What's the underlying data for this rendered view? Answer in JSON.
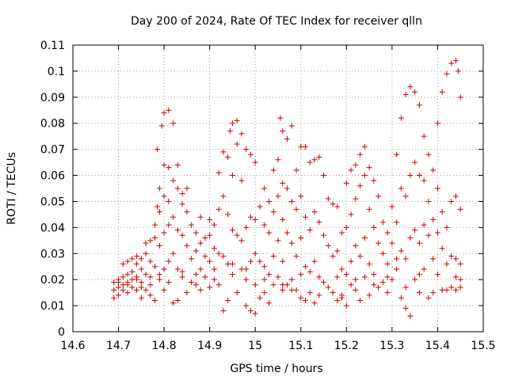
{
  "chart_data": {
    "type": "scatter",
    "title": "Day 200 of 2024, Rate Of TEC Index for receiver qlln",
    "xlabel": "GPS time / hours",
    "ylabel": "ROTI / TECUs",
    "xlim": [
      14.6,
      15.5
    ],
    "ylim": [
      0,
      0.11
    ],
    "xticks": [
      "14.6",
      "14.7",
      "14.8",
      "14.9",
      "15",
      "15.1",
      "15.2",
      "15.3",
      "15.4",
      "15.5"
    ],
    "yticks": [
      "0",
      "0.01",
      "0.02",
      "0.03",
      "0.04",
      "0.05",
      "0.06",
      "0.07",
      "0.08",
      "0.09",
      "0.1",
      "0.11"
    ],
    "grid": true,
    "marker": "+",
    "series_color": "#cc0000",
    "points": [
      [
        14.69,
        0.019
      ],
      [
        14.69,
        0.016
      ],
      [
        14.69,
        0.013
      ],
      [
        14.7,
        0.02
      ],
      [
        14.7,
        0.017
      ],
      [
        14.7,
        0.014
      ],
      [
        14.71,
        0.021
      ],
      [
        14.71,
        0.018
      ],
      [
        14.71,
        0.016
      ],
      [
        14.71,
        0.026
      ],
      [
        14.72,
        0.027
      ],
      [
        14.72,
        0.022
      ],
      [
        14.72,
        0.019
      ],
      [
        14.72,
        0.015
      ],
      [
        14.73,
        0.028
      ],
      [
        14.73,
        0.023
      ],
      [
        14.73,
        0.02
      ],
      [
        14.73,
        0.017
      ],
      [
        14.74,
        0.029
      ],
      [
        14.74,
        0.026
      ],
      [
        14.74,
        0.021
      ],
      [
        14.74,
        0.016
      ],
      [
        14.75,
        0.028
      ],
      [
        14.75,
        0.024
      ],
      [
        14.75,
        0.019
      ],
      [
        14.75,
        0.013
      ],
      [
        14.76,
        0.034
      ],
      [
        14.76,
        0.03
      ],
      [
        14.76,
        0.022
      ],
      [
        14.76,
        0.016
      ],
      [
        14.77,
        0.035
      ],
      [
        14.77,
        0.027
      ],
      [
        14.77,
        0.018
      ],
      [
        14.77,
        0.014
      ],
      [
        14.78,
        0.041
      ],
      [
        14.78,
        0.036
      ],
      [
        14.78,
        0.025
      ],
      [
        14.78,
        0.012
      ],
      [
        14.785,
        0.07
      ],
      [
        14.785,
        0.048
      ],
      [
        14.79,
        0.055
      ],
      [
        14.79,
        0.046
      ],
      [
        14.79,
        0.033
      ],
      [
        14.79,
        0.02
      ],
      [
        14.795,
        0.079
      ],
      [
        14.8,
        0.084
      ],
      [
        14.8,
        0.064
      ],
      [
        14.8,
        0.052
      ],
      [
        14.8,
        0.038
      ],
      [
        14.8,
        0.016
      ],
      [
        14.81,
        0.085
      ],
      [
        14.81,
        0.063
      ],
      [
        14.81,
        0.05
      ],
      [
        14.81,
        0.041
      ],
      [
        14.81,
        0.027
      ],
      [
        14.81,
        0.019
      ],
      [
        14.82,
        0.08
      ],
      [
        14.82,
        0.058
      ],
      [
        14.82,
        0.044
      ],
      [
        14.82,
        0.03
      ],
      [
        14.82,
        0.011
      ],
      [
        14.83,
        0.064
      ],
      [
        14.83,
        0.055
      ],
      [
        14.83,
        0.039
      ],
      [
        14.83,
        0.024
      ],
      [
        14.83,
        0.012
      ],
      [
        14.84,
        0.053
      ],
      [
        14.84,
        0.049
      ],
      [
        14.84,
        0.037
      ],
      [
        14.84,
        0.021
      ],
      [
        14.85,
        0.055
      ],
      [
        14.85,
        0.046
      ],
      [
        14.85,
        0.033
      ],
      [
        14.85,
        0.015
      ],
      [
        14.86,
        0.041
      ],
      [
        14.86,
        0.028
      ],
      [
        14.86,
        0.019
      ],
      [
        14.87,
        0.038
      ],
      [
        14.87,
        0.031
      ],
      [
        14.87,
        0.022
      ],
      [
        14.88,
        0.044
      ],
      [
        14.88,
        0.034
      ],
      [
        14.88,
        0.024
      ],
      [
        14.88,
        0.016
      ],
      [
        14.89,
        0.036
      ],
      [
        14.89,
        0.029
      ],
      [
        14.89,
        0.021
      ],
      [
        14.9,
        0.043
      ],
      [
        14.9,
        0.037
      ],
      [
        14.9,
        0.027
      ],
      [
        14.9,
        0.017
      ],
      [
        14.91,
        0.041
      ],
      [
        14.91,
        0.032
      ],
      [
        14.91,
        0.024
      ],
      [
        14.92,
        0.061
      ],
      [
        14.92,
        0.047
      ],
      [
        14.92,
        0.03
      ],
      [
        14.92,
        0.018
      ],
      [
        14.93,
        0.069
      ],
      [
        14.93,
        0.052
      ],
      [
        14.93,
        0.029
      ],
      [
        14.93,
        0.008
      ],
      [
        14.94,
        0.067
      ],
      [
        14.94,
        0.045
      ],
      [
        14.94,
        0.026
      ],
      [
        14.94,
        0.012
      ],
      [
        14.945,
        0.077
      ],
      [
        14.95,
        0.08
      ],
      [
        14.95,
        0.06
      ],
      [
        14.95,
        0.039
      ],
      [
        14.95,
        0.022
      ],
      [
        14.96,
        0.081
      ],
      [
        14.96,
        0.072
      ],
      [
        14.96,
        0.037
      ],
      [
        14.96,
        0.015
      ],
      [
        14.97,
        0.076
      ],
      [
        14.97,
        0.058
      ],
      [
        14.97,
        0.035
      ],
      [
        14.97,
        0.024
      ],
      [
        14.98,
        0.07
      ],
      [
        14.98,
        0.04
      ],
      [
        14.98,
        0.02
      ],
      [
        14.98,
        0.01
      ],
      [
        14.99,
        0.068
      ],
      [
        14.99,
        0.044
      ],
      [
        14.99,
        0.027
      ],
      [
        14.99,
        0.008
      ],
      [
        15.0,
        0.065
      ],
      [
        15.0,
        0.043
      ],
      [
        15.0,
        0.03
      ],
      [
        15.0,
        0.018
      ],
      [
        15.0,
        0.007
      ],
      [
        15.01,
        0.048
      ],
      [
        15.01,
        0.027
      ],
      [
        15.01,
        0.013
      ],
      [
        15.02,
        0.055
      ],
      [
        15.02,
        0.041
      ],
      [
        15.02,
        0.025
      ],
      [
        15.02,
        0.015
      ],
      [
        15.03,
        0.05
      ],
      [
        15.03,
        0.038
      ],
      [
        15.03,
        0.022
      ],
      [
        15.03,
        0.011
      ],
      [
        15.04,
        0.062
      ],
      [
        15.04,
        0.046
      ],
      [
        15.04,
        0.029
      ],
      [
        15.04,
        0.018
      ],
      [
        15.05,
        0.066
      ],
      [
        15.05,
        0.052
      ],
      [
        15.05,
        0.035
      ],
      [
        15.05,
        0.021
      ],
      [
        15.055,
        0.082
      ],
      [
        15.06,
        0.077
      ],
      [
        15.06,
        0.057
      ],
      [
        15.06,
        0.043
      ],
      [
        15.06,
        0.027
      ],
      [
        15.06,
        0.016
      ],
      [
        15.07,
        0.074
      ],
      [
        15.07,
        0.055
      ],
      [
        15.07,
        0.038
      ],
      [
        15.07,
        0.018
      ],
      [
        15.08,
        0.079
      ],
      [
        15.08,
        0.05
      ],
      [
        15.08,
        0.034
      ],
      [
        15.08,
        0.02
      ],
      [
        15.09,
        0.062
      ],
      [
        15.09,
        0.047
      ],
      [
        15.09,
        0.029
      ],
      [
        15.09,
        0.016
      ],
      [
        15.1,
        0.071
      ],
      [
        15.1,
        0.052
      ],
      [
        15.1,
        0.036
      ],
      [
        15.1,
        0.022
      ],
      [
        15.1,
        0.013
      ],
      [
        15.11,
        0.071
      ],
      [
        15.11,
        0.044
      ],
      [
        15.11,
        0.025
      ],
      [
        15.11,
        0.012
      ],
      [
        15.12,
        0.065
      ],
      [
        15.12,
        0.039
      ],
      [
        15.12,
        0.023
      ],
      [
        15.12,
        0.015
      ],
      [
        15.13,
        0.066
      ],
      [
        15.13,
        0.046
      ],
      [
        15.13,
        0.027
      ],
      [
        15.13,
        0.011
      ],
      [
        15.14,
        0.067
      ],
      [
        15.14,
        0.042
      ],
      [
        15.14,
        0.021
      ],
      [
        15.15,
        0.06
      ],
      [
        15.15,
        0.037
      ],
      [
        15.15,
        0.019
      ],
      [
        15.16,
        0.051
      ],
      [
        15.16,
        0.033
      ],
      [
        15.16,
        0.017
      ],
      [
        15.17,
        0.049
      ],
      [
        15.17,
        0.029
      ],
      [
        15.17,
        0.015
      ],
      [
        15.18,
        0.048
      ],
      [
        15.18,
        0.031
      ],
      [
        15.18,
        0.021
      ],
      [
        15.18,
        0.012
      ],
      [
        15.19,
        0.038
      ],
      [
        15.19,
        0.024
      ],
      [
        15.19,
        0.014
      ],
      [
        15.2,
        0.057
      ],
      [
        15.2,
        0.04
      ],
      [
        15.2,
        0.022
      ],
      [
        15.2,
        0.01
      ],
      [
        15.21,
        0.062
      ],
      [
        15.21,
        0.045
      ],
      [
        15.21,
        0.027
      ],
      [
        15.21,
        0.018
      ],
      [
        15.22,
        0.064
      ],
      [
        15.22,
        0.051
      ],
      [
        15.22,
        0.033
      ],
      [
        15.22,
        0.016
      ],
      [
        15.23,
        0.068
      ],
      [
        15.23,
        0.056
      ],
      [
        15.23,
        0.029
      ],
      [
        15.23,
        0.012
      ],
      [
        15.24,
        0.071
      ],
      [
        15.24,
        0.06
      ],
      [
        15.24,
        0.036
      ],
      [
        15.24,
        0.021
      ],
      [
        15.25,
        0.063
      ],
      [
        15.25,
        0.047
      ],
      [
        15.25,
        0.026
      ],
      [
        15.25,
        0.014
      ],
      [
        15.26,
        0.058
      ],
      [
        15.26,
        0.04
      ],
      [
        15.26,
        0.022
      ],
      [
        15.27,
        0.052
      ],
      [
        15.27,
        0.034
      ],
      [
        15.27,
        0.017
      ],
      [
        15.28,
        0.042
      ],
      [
        15.28,
        0.03
      ],
      [
        15.28,
        0.019
      ],
      [
        15.29,
        0.038
      ],
      [
        15.29,
        0.026
      ],
      [
        15.29,
        0.015
      ],
      [
        15.3,
        0.048
      ],
      [
        15.3,
        0.034
      ],
      [
        15.3,
        0.02
      ],
      [
        15.31,
        0.068
      ],
      [
        15.31,
        0.042
      ],
      [
        15.31,
        0.028
      ],
      [
        15.32,
        0.082
      ],
      [
        15.32,
        0.055
      ],
      [
        15.32,
        0.031
      ],
      [
        15.32,
        0.013
      ],
      [
        15.33,
        0.091
      ],
      [
        15.33,
        0.052
      ],
      [
        15.33,
        0.028
      ],
      [
        15.33,
        0.009
      ],
      [
        15.34,
        0.094
      ],
      [
        15.34,
        0.06
      ],
      [
        15.34,
        0.036
      ],
      [
        15.34,
        0.006
      ],
      [
        15.35,
        0.092
      ],
      [
        15.35,
        0.065
      ],
      [
        15.35,
        0.039
      ],
      [
        15.35,
        0.02
      ],
      [
        15.36,
        0.087
      ],
      [
        15.36,
        0.06
      ],
      [
        15.36,
        0.034
      ],
      [
        15.36,
        0.015
      ],
      [
        15.37,
        0.075
      ],
      [
        15.37,
        0.058
      ],
      [
        15.37,
        0.041
      ],
      [
        15.37,
        0.024
      ],
      [
        15.38,
        0.068
      ],
      [
        15.38,
        0.05
      ],
      [
        15.38,
        0.037
      ],
      [
        15.38,
        0.013
      ],
      [
        15.39,
        0.062
      ],
      [
        15.39,
        0.043
      ],
      [
        15.39,
        0.028
      ],
      [
        15.4,
        0.08
      ],
      [
        15.4,
        0.055
      ],
      [
        15.4,
        0.038
      ],
      [
        15.4,
        0.022
      ],
      [
        15.41,
        0.092
      ],
      [
        15.41,
        0.046
      ],
      [
        15.41,
        0.032
      ],
      [
        15.41,
        0.016
      ],
      [
        15.42,
        0.099
      ],
      [
        15.42,
        0.04
      ],
      [
        15.42,
        0.026
      ],
      [
        15.43,
        0.103
      ],
      [
        15.43,
        0.05
      ],
      [
        15.43,
        0.029
      ],
      [
        15.43,
        0.017
      ],
      [
        15.44,
        0.104
      ],
      [
        15.44,
        0.052
      ],
      [
        15.44,
        0.028
      ],
      [
        15.44,
        0.016
      ],
      [
        15.445,
        0.1
      ],
      [
        15.45,
        0.09
      ],
      [
        15.45,
        0.047
      ],
      [
        15.45,
        0.026
      ],
      [
        15.45,
        0.02
      ],
      [
        15.45,
        0.017
      ],
      [
        14.7,
        0.019
      ],
      [
        14.72,
        0.018
      ],
      [
        14.74,
        0.02
      ],
      [
        14.75,
        0.017
      ],
      [
        14.77,
        0.021
      ],
      [
        14.79,
        0.022
      ],
      [
        14.8,
        0.024
      ],
      [
        14.84,
        0.023
      ],
      [
        14.87,
        0.018
      ],
      [
        14.91,
        0.02
      ],
      [
        14.95,
        0.026
      ],
      [
        14.98,
        0.024
      ],
      [
        15.02,
        0.02
      ],
      [
        15.06,
        0.018
      ],
      [
        15.08,
        0.016
      ],
      [
        15.14,
        0.014
      ],
      [
        15.19,
        0.013
      ],
      [
        15.22,
        0.02
      ],
      [
        15.26,
        0.018
      ],
      [
        15.29,
        0.021
      ],
      [
        15.31,
        0.024
      ],
      [
        15.33,
        0.017
      ],
      [
        15.36,
        0.022
      ],
      [
        15.39,
        0.015
      ],
      [
        15.42,
        0.016
      ],
      [
        15.44,
        0.021
      ]
    ]
  }
}
